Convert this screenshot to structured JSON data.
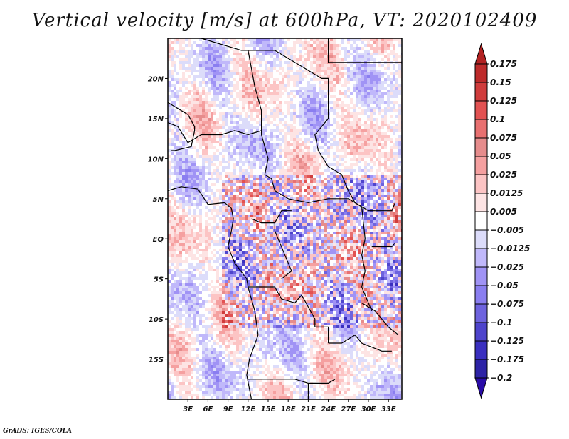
{
  "title": "Vertical velocity [m/s] at 600hPa, VT: 2020102409",
  "footer": "GrADS: IGES/COLA",
  "chart_data": {
    "type": "heatmap",
    "title": "Vertical velocity [m/s] at 600hPa, VT: 2020102409",
    "variable": "Vertical velocity",
    "units": "m/s",
    "level": "600hPa",
    "valid_time": "2020102409",
    "xlabel": "",
    "ylabel": "",
    "x_range_deg": [
      0,
      35
    ],
    "y_range_deg": [
      -20,
      25
    ],
    "x_ticks": [
      {
        "value": 3,
        "label": "3E"
      },
      {
        "value": 6,
        "label": "6E"
      },
      {
        "value": 9,
        "label": "9E"
      },
      {
        "value": 12,
        "label": "12E"
      },
      {
        "value": 15,
        "label": "15E"
      },
      {
        "value": 18,
        "label": "18E"
      },
      {
        "value": 21,
        "label": "21E"
      },
      {
        "value": 24,
        "label": "24E"
      },
      {
        "value": 27,
        "label": "27E"
      },
      {
        "value": 30,
        "label": "30E"
      },
      {
        "value": 33,
        "label": "33E"
      }
    ],
    "y_ticks": [
      {
        "value": 20,
        "label": "20N"
      },
      {
        "value": 15,
        "label": "15N"
      },
      {
        "value": 10,
        "label": "10N"
      },
      {
        "value": 5,
        "label": "5N"
      },
      {
        "value": 0,
        "label": "EQ"
      },
      {
        "value": -5,
        "label": "5S"
      },
      {
        "value": -10,
        "label": "10S"
      },
      {
        "value": -15,
        "label": "15S"
      }
    ],
    "colorbar": {
      "position": "right",
      "extend": "both",
      "levels": [
        {
          "label": "0.175",
          "color": "#a81c1c"
        },
        {
          "label": "0.15",
          "color": "#bd2a2a"
        },
        {
          "label": "0.125",
          "color": "#d03c3c"
        },
        {
          "label": "0.1",
          "color": "#e25252"
        },
        {
          "label": "0.075",
          "color": "#e87070"
        },
        {
          "label": "0.05",
          "color": "#e68c8c"
        },
        {
          "label": "0.025",
          "color": "#f5a0a0"
        },
        {
          "label": "0.0125",
          "color": "#fcc4c4"
        },
        {
          "label": "0.005",
          "color": "#fde4e4"
        },
        {
          "label": "-0.005",
          "color": "#ffffff"
        },
        {
          "label": "-0.0125",
          "color": "#dcdcfa"
        },
        {
          "label": "-0.025",
          "color": "#c0b8fa"
        },
        {
          "label": "-0.05",
          "color": "#a093f5"
        },
        {
          "label": "-0.075",
          "color": "#8a7ef0"
        },
        {
          "label": "-0.1",
          "color": "#6e63de"
        },
        {
          "label": "-0.125",
          "color": "#4e44cc"
        },
        {
          "label": "-0.175",
          "color": "#3a2fbf"
        },
        {
          "label": "-0.2",
          "color": "#2d23a6"
        }
      ],
      "top_extend_color": "#b22222",
      "bottom_extend_color": "#2a0ca8"
    },
    "grid": false,
    "basemap": "country boundaries, Central Africa",
    "pattern_notes": "mostly weak positive/negative bands over Sahara and Atlantic; strong mixed convective signal between ~8N and ~10S, 9E-33E"
  }
}
